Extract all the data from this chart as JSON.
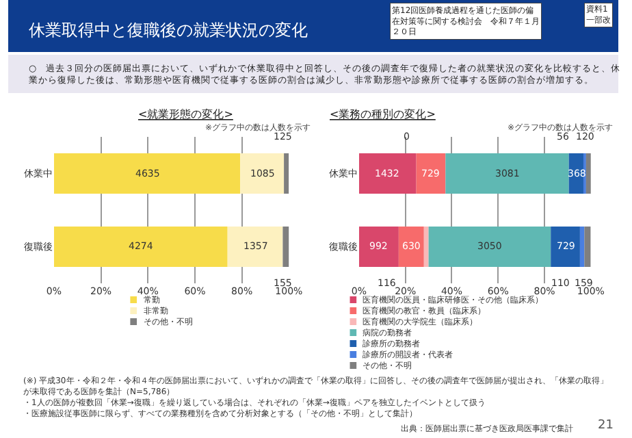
{
  "chart_data": [
    {
      "type": "bar",
      "orientation": "horizontal",
      "stacked": true,
      "title": "<就業形態の変化>",
      "subtitle": "※グラフ中の数は人数を示す",
      "categories": [
        "休業中",
        "復職後"
      ],
      "series": [
        {
          "name": "常勤",
          "color": "#f7dc4a",
          "values": [
            79.3,
            73.9
          ]
        },
        {
          "name": "非常勤",
          "color": "#fdf1c0",
          "values": [
            18.6,
            23.5
          ]
        },
        {
          "name": "その他・不明",
          "color": "#7f7f7f",
          "values": [
            2.1,
            2.7
          ]
        }
      ],
      "xlim": [
        0,
        100
      ],
      "xticks": [
        {
          "value": 0,
          "label": "0%"
        },
        {
          "value": 20,
          "label": "20%"
        },
        {
          "value": 40,
          "label": "40%"
        },
        {
          "value": 60,
          "label": "60%"
        },
        {
          "value": 80,
          "label": "80%"
        },
        {
          "value": 100,
          "label": "100%"
        }
      ],
      "grid": "x",
      "legend": "bottom",
      "annotations": [
        "休業取得中と復職後の就業状況の変化",
        "第12回医師養成過程を通じた医師の偏在対策等に関する検討会　令和７年１月２０日",
        "資料1 一部改",
        "○　過去３回分の医師届出票において、いずれかで休業取得中と回答し、その後の調査年で復帰した者の就業状況の変化を比較すると、休業から復帰した後は、常勤形態や医育機関で従事する医師の割合は減少し、非常勤形態や診療所で従事する医師の割合が増加する。",
        "(※) 平成30年・令和２年・令和４年の医師届出票において、いずれかの調査で「休業の取得」に回答し、その後の調査年で医師届が提出され、「休業の取得」が未取得である医師を集計（N=5,786）",
        "・1人の医師が複数回「休業→復職」を繰り返している場合は、それぞれの「休業→復職」ペアを独立したイベントとして扱う",
        "・医療施設従事医師に限らず、すべての業務種別を含めて分析対象とする（「その他・不明」として集計）",
        "出典：医師届出票に基づき医政局医事課で集計",
        "21",
        "4635",
        "1085",
        "125",
        "4274",
        "1357",
        "155"
      ]
    },
    {
      "type": "bar",
      "orientation": "horizontal",
      "stacked": true,
      "title": "<業務の種別の変化>",
      "subtitle": "※グラフ中の数は人数を示す",
      "categories": [
        "休業中",
        "復職後"
      ],
      "series": [
        {
          "name": "医育機関の医員・臨床研修医・その他（臨床系）",
          "color": "#d9476b",
          "values": [
            24.7,
            17.1
          ]
        },
        {
          "name": "医育機関の教官・教員（臨床系）",
          "color": "#f76b6b",
          "values": [
            12.6,
            10.9
          ]
        },
        {
          "name": "医育機関の大学院生（臨床系）",
          "color": "#f9b8b8",
          "values": [
            0,
            2.0
          ]
        },
        {
          "name": "病院の勤務者",
          "color": "#5fb8b3",
          "values": [
            53.2,
            52.7
          ]
        },
        {
          "name": "診療所の勤務者",
          "color": "#1f5fae",
          "values": [
            6.4,
            12.6
          ]
        },
        {
          "name": "診療所の開設者・代表者",
          "color": "#4a7fe0",
          "values": [
            1.0,
            1.9
          ]
        },
        {
          "name": "その他・不明",
          "color": "#7f7f7f",
          "values": [
            2.1,
            2.7
          ]
        }
      ],
      "xlim": [
        0,
        100
      ],
      "xticks": [
        {
          "value": 0,
          "label": "0%"
        },
        {
          "value": 20,
          "label": "20%"
        },
        {
          "value": 40,
          "label": "40%"
        },
        {
          "value": 60,
          "label": "60%"
        },
        {
          "value": 80,
          "label": "80%"
        },
        {
          "value": 100,
          "label": "100%"
        }
      ],
      "grid": "x",
      "legend": "bottom",
      "annotations": [
        "1432",
        "729",
        "0",
        "3081",
        "368",
        "56",
        "120",
        "992",
        "630",
        "116",
        "3050",
        "729",
        "110",
        "159"
      ]
    }
  ]
}
